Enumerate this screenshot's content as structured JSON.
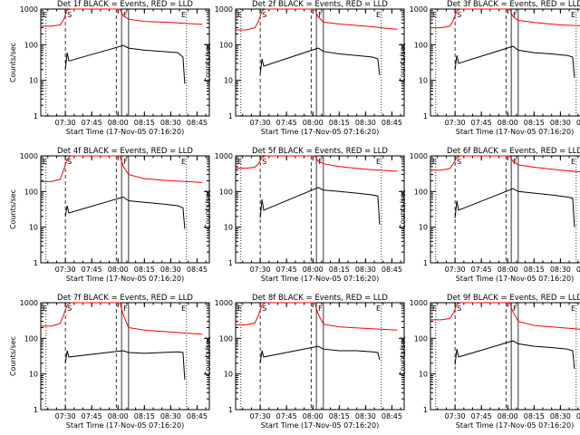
{
  "figure": {
    "xlabel": "Start Time (17-Nov-05 07:16:20)",
    "ylabel": "Counts/sec",
    "x_ticks": [
      "07:30",
      "07:45",
      "08:00",
      "08:15",
      "08:30",
      "08:45"
    ],
    "y_ticks": [
      "1",
      "10",
      "100",
      "1000"
    ],
    "colors": {
      "events": "#000000",
      "lld": "#ff0000",
      "axes": "#000000"
    }
  },
  "chart_data": [
    {
      "type": "line",
      "title": "Det 1f BLACK = Events, RED = LLD",
      "markers": [
        "E",
        "S",
        "F",
        "E"
      ],
      "yscale": "log",
      "ylim": [
        1,
        1000
      ],
      "xlim": [
        "07:16",
        "08:52"
      ],
      "series": [
        {
          "name": "LLD",
          "x": [
            "07:16",
            "07:22",
            "07:27",
            "07:29",
            "07:31",
            "07:33",
            "08:01",
            "08:03",
            "08:06",
            "08:15",
            "08:30",
            "08:48"
          ],
          "values": [
            330,
            330,
            360,
            500,
            950,
            1000,
            1000,
            650,
            520,
            450,
            420,
            370
          ]
        },
        {
          "name": "Events",
          "x": [
            "07:30",
            "07:31",
            "07:32",
            "08:03",
            "08:06",
            "08:15",
            "08:25",
            "08:34",
            "08:37",
            "08:38"
          ],
          "values": [
            20,
            60,
            35,
            95,
            80,
            70,
            65,
            60,
            45,
            8
          ]
        }
      ]
    },
    {
      "type": "line",
      "title": "Det 2f BLACK = Events, RED = LLD",
      "markers": [
        "E",
        "S",
        "F",
        "E"
      ],
      "yscale": "log",
      "ylim": [
        1,
        1000
      ],
      "xlim": [
        "07:16",
        "08:52"
      ],
      "series": [
        {
          "name": "LLD",
          "x": [
            "07:16",
            "07:22",
            "07:27",
            "07:29",
            "07:31",
            "07:33",
            "08:01",
            "08:03",
            "08:06",
            "08:15",
            "08:30",
            "08:48"
          ],
          "values": [
            260,
            260,
            300,
            450,
            900,
            1000,
            1000,
            600,
            430,
            380,
            330,
            270
          ]
        },
        {
          "name": "Events",
          "x": [
            "07:30",
            "07:31",
            "07:32",
            "08:03",
            "08:06",
            "08:15",
            "08:25",
            "08:34",
            "08:37",
            "08:38"
          ],
          "values": [
            15,
            40,
            25,
            80,
            65,
            55,
            50,
            45,
            40,
            14
          ]
        }
      ]
    },
    {
      "type": "line",
      "title": "Det 3f BLACK = Events, RED = LLD",
      "markers": [
        "E",
        "S",
        "F",
        "E"
      ],
      "yscale": "log",
      "ylim": [
        1,
        1000
      ],
      "xlim": [
        "07:16",
        "08:52"
      ],
      "series": [
        {
          "name": "LLD",
          "x": [
            "07:16",
            "07:22",
            "07:27",
            "07:29",
            "07:31",
            "07:33",
            "08:01",
            "08:03",
            "08:06",
            "08:15",
            "08:30",
            "08:48"
          ],
          "values": [
            300,
            300,
            330,
            480,
            900,
            1000,
            1000,
            620,
            480,
            420,
            360,
            330
          ]
        },
        {
          "name": "Events",
          "x": [
            "07:30",
            "07:31",
            "07:32",
            "08:03",
            "08:06",
            "08:15",
            "08:25",
            "08:34",
            "08:37",
            "08:38"
          ],
          "values": [
            20,
            50,
            30,
            90,
            70,
            60,
            55,
            50,
            45,
            12
          ]
        }
      ]
    },
    {
      "type": "line",
      "title": "Det 4f BLACK = Events, RED = LLD",
      "markers": [
        "E",
        "S",
        "F",
        "E"
      ],
      "yscale": "log",
      "ylim": [
        1,
        1000
      ],
      "xlim": [
        "07:16",
        "08:52"
      ],
      "series": [
        {
          "name": "LLD",
          "x": [
            "07:16",
            "07:22",
            "07:27",
            "07:29",
            "07:31",
            "07:33",
            "08:01",
            "08:03",
            "08:06",
            "08:15",
            "08:30",
            "08:48"
          ],
          "values": [
            190,
            190,
            220,
            400,
            800,
            1000,
            1000,
            500,
            300,
            230,
            200,
            180
          ]
        },
        {
          "name": "Events",
          "x": [
            "07:30",
            "07:31",
            "07:32",
            "08:03",
            "08:06",
            "08:15",
            "08:25",
            "08:34",
            "08:37",
            "08:38"
          ],
          "values": [
            20,
            40,
            25,
            70,
            55,
            50,
            45,
            40,
            35,
            9
          ]
        }
      ]
    },
    {
      "type": "line",
      "title": "Det 5f BLACK = Events, RED = LLD",
      "markers": [
        "E",
        "S",
        "F",
        "E"
      ],
      "yscale": "log",
      "ylim": [
        1,
        1000
      ],
      "xlim": [
        "07:16",
        "08:52"
      ],
      "series": [
        {
          "name": "LLD",
          "x": [
            "07:16",
            "07:22",
            "07:27",
            "07:29",
            "07:31",
            "07:33",
            "08:01",
            "08:03",
            "08:06",
            "08:15",
            "08:30",
            "08:48"
          ],
          "values": [
            450,
            450,
            480,
            600,
            900,
            1000,
            1000,
            700,
            600,
            500,
            420,
            370
          ]
        },
        {
          "name": "Events",
          "x": [
            "07:30",
            "07:31",
            "07:32",
            "08:03",
            "08:06",
            "08:15",
            "08:25",
            "08:34",
            "08:37",
            "08:38"
          ],
          "values": [
            18,
            60,
            30,
            130,
            110,
            100,
            90,
            80,
            75,
            12
          ]
        }
      ]
    },
    {
      "type": "line",
      "title": "Det 6f BLACK = Events, RED = LLD",
      "markers": [
        "E",
        "S",
        "F",
        "E"
      ],
      "yscale": "log",
      "ylim": [
        1,
        1000
      ],
      "xlim": [
        "07:16",
        "08:52"
      ],
      "series": [
        {
          "name": "LLD",
          "x": [
            "07:16",
            "07:22",
            "07:27",
            "07:29",
            "07:31",
            "07:33",
            "08:01",
            "08:03",
            "08:06",
            "08:15",
            "08:30",
            "08:48"
          ],
          "values": [
            400,
            400,
            440,
            600,
            900,
            1000,
            1000,
            700,
            560,
            480,
            400,
            330
          ]
        },
        {
          "name": "Events",
          "x": [
            "07:30",
            "07:31",
            "07:32",
            "08:03",
            "08:06",
            "08:15",
            "08:25",
            "08:34",
            "08:37",
            "08:38"
          ],
          "values": [
            18,
            55,
            30,
            120,
            100,
            90,
            80,
            70,
            65,
            10
          ]
        }
      ]
    },
    {
      "type": "line",
      "title": "Det 7f BLACK = Events, RED = LLD",
      "markers": [
        "E",
        "S",
        "F",
        "E"
      ],
      "yscale": "log",
      "ylim": [
        1,
        1000
      ],
      "xlim": [
        "07:16",
        "08:52"
      ],
      "series": [
        {
          "name": "LLD",
          "x": [
            "07:16",
            "07:22",
            "07:27",
            "07:29",
            "07:31",
            "07:33",
            "08:01",
            "08:03",
            "08:06",
            "08:15",
            "08:30",
            "08:48"
          ],
          "values": [
            220,
            220,
            260,
            450,
            850,
            1000,
            1000,
            450,
            200,
            170,
            150,
            130
          ]
        },
        {
          "name": "Events",
          "x": [
            "07:30",
            "07:31",
            "07:32",
            "08:03",
            "08:06",
            "08:15",
            "08:25",
            "08:34",
            "08:37",
            "08:38"
          ],
          "values": [
            20,
            45,
            30,
            45,
            40,
            38,
            40,
            42,
            40,
            7
          ]
        }
      ]
    },
    {
      "type": "line",
      "title": "Det 8f BLACK = Events, RED = LLD",
      "markers": [
        "E",
        "S",
        "F",
        "E"
      ],
      "yscale": "log",
      "ylim": [
        1,
        1000
      ],
      "xlim": [
        "07:16",
        "08:52"
      ],
      "series": [
        {
          "name": "LLD",
          "x": [
            "07:16",
            "07:22",
            "07:27",
            "07:29",
            "07:31",
            "07:33",
            "08:01",
            "08:03",
            "08:06",
            "08:15",
            "08:30",
            "08:48"
          ],
          "values": [
            240,
            240,
            270,
            450,
            850,
            1000,
            1000,
            480,
            250,
            210,
            190,
            170
          ]
        },
        {
          "name": "Events",
          "x": [
            "07:30",
            "07:31",
            "07:32",
            "08:03",
            "08:06",
            "08:15",
            "08:25",
            "08:34",
            "08:37",
            "08:38"
          ],
          "values": [
            20,
            45,
            30,
            60,
            50,
            45,
            45,
            42,
            40,
            25
          ]
        }
      ]
    },
    {
      "type": "line",
      "title": "Det 9f BLACK = Events, RED = LLD",
      "markers": [
        "E",
        "S",
        "F",
        "E"
      ],
      "yscale": "log",
      "ylim": [
        1,
        1000
      ],
      "xlim": [
        "07:16",
        "08:52"
      ],
      "series": [
        {
          "name": "LLD",
          "x": [
            "07:16",
            "07:22",
            "07:27",
            "07:29",
            "07:31",
            "07:33",
            "08:01",
            "08:03",
            "08:06",
            "08:15",
            "08:30",
            "08:48"
          ],
          "values": [
            330,
            330,
            360,
            500,
            900,
            1000,
            1000,
            550,
            300,
            230,
            200,
            170
          ]
        },
        {
          "name": "Events",
          "x": [
            "07:30",
            "07:31",
            "07:32",
            "08:03",
            "08:06",
            "08:15",
            "08:25",
            "08:34",
            "08:37",
            "08:38"
          ],
          "values": [
            18,
            50,
            30,
            85,
            70,
            60,
            55,
            50,
            45,
            14
          ]
        }
      ]
    }
  ]
}
